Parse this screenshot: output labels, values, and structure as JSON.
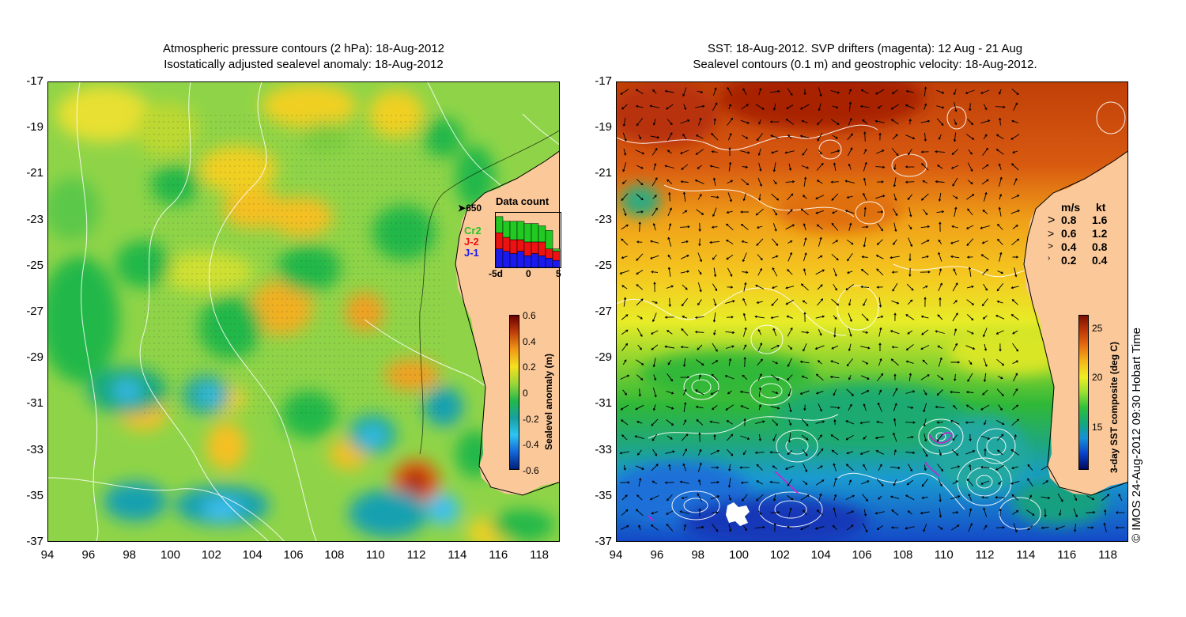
{
  "left_panel": {
    "title_line1": "Atmospheric pressure contours (2 hPa): 18-Aug-2012",
    "title_line2": "Isostatically adjusted sealevel anomaly: 18-Aug-2012",
    "y_ticks": [
      "-17",
      "-19",
      "-21",
      "-23",
      "-25",
      "-27",
      "-29",
      "-31",
      "-33",
      "-35",
      "-37"
    ],
    "x_ticks": [
      "94",
      "96",
      "98",
      "100",
      "102",
      "104",
      "106",
      "108",
      "110",
      "112",
      "114",
      "116",
      "118"
    ],
    "callout_650": "650",
    "data_count": {
      "title": "Data count",
      "legend": [
        {
          "label": "Cr2",
          "color": "#22c922"
        },
        {
          "label": "J-2",
          "color": "#ee1111"
        },
        {
          "label": "J-1",
          "color": "#1a1aee"
        }
      ],
      "x_ticks": [
        "-5d",
        "0",
        "5"
      ],
      "days": [
        -5,
        -4,
        -3,
        -2,
        -1,
        0,
        1,
        2,
        3
      ],
      "j1": [
        8,
        7,
        6,
        7,
        5,
        6,
        5,
        4,
        3
      ],
      "j2": [
        7,
        6,
        6,
        5,
        6,
        5,
        6,
        4,
        4
      ],
      "cr2": [
        7,
        7,
        8,
        8,
        8,
        8,
        7,
        8,
        1
      ]
    },
    "colorbar": {
      "label": "Sealevel anomaly (m)",
      "ticks": [
        "0.6",
        "0.4",
        "0.2",
        "0",
        "-0.2",
        "-0.4",
        "-0.6"
      ],
      "colors": [
        "#6b0000",
        "#c0400a",
        "#f09a18",
        "#f5e020",
        "#9ad638",
        "#22b84a",
        "#16a0a0",
        "#2ec4f2",
        "#1466d8",
        "#00207a"
      ]
    }
  },
  "right_panel": {
    "title_line1": "SST: 18-Aug-2012. SVP drifters (magenta): 12 Aug - 21 Aug",
    "title_line2": "Sealevel contours (0.1 m) and geostrophic velocity: 18-Aug-2012.",
    "y_ticks": [
      "-17",
      "-19",
      "-21",
      "-23",
      "-25",
      "-27",
      "-29",
      "-31",
      "-33",
      "-35",
      "-37"
    ],
    "x_ticks": [
      "94",
      "96",
      "98",
      "100",
      "102",
      "104",
      "106",
      "108",
      "110",
      "112",
      "114",
      "116",
      "118"
    ],
    "velocity_legend": {
      "header_ms": "m/s",
      "header_kt": "kt",
      "rows": [
        {
          "ms": "0.8",
          "kt": "1.6"
        },
        {
          "ms": "0.6",
          "kt": "1.2"
        },
        {
          "ms": "0.4",
          "kt": "0.8"
        },
        {
          "ms": "0.2",
          "kt": "0.4"
        }
      ]
    },
    "colorbar": {
      "label": "3-day SST composite (deg C)",
      "ticks": [
        "25",
        "20",
        "15"
      ],
      "colors": [
        "#7a1000",
        "#c03808",
        "#e87010",
        "#f5b818",
        "#f0ee20",
        "#9ae030",
        "#2ec03a",
        "#12a87a",
        "#1490d8",
        "#0a40c8",
        "#000a60"
      ]
    },
    "copyright": "© IMOS 24-Aug-2012 09:30 Hobart Time"
  },
  "colors": {
    "land": "#fbc89a",
    "sla_background": "#8fd448",
    "sst_background": "#f0c028"
  }
}
